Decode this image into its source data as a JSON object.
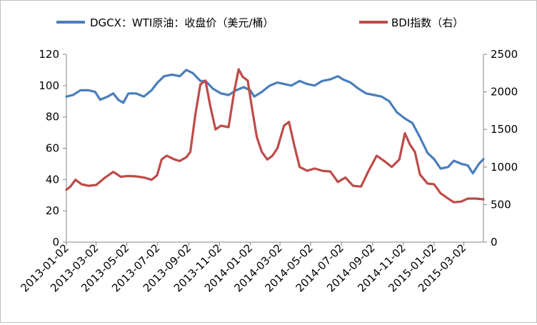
{
  "chart_data": {
    "type": "line",
    "title": "",
    "legend_placement": "top",
    "grid": false,
    "x_tick_labels": [
      "2013-01-02",
      "2013-03-02",
      "2013-05-02",
      "2013-07-02",
      "2013-09-02",
      "2013-11-02",
      "2014-01-02",
      "2014-03-02",
      "2014-05-02",
      "2014-07-02",
      "2014-09-02",
      "2014-11-02",
      "2015-01-02",
      "2015-03-02"
    ],
    "x_range": [
      "2013-01-02",
      "2015-04-10"
    ],
    "y_left": {
      "ticks": [
        "0",
        "20",
        "40",
        "60",
        "80",
        "100",
        "120"
      ],
      "lim": [
        0,
        120
      ]
    },
    "y_right": {
      "ticks": [
        "0",
        "500",
        "1000",
        "1500",
        "2000",
        "2500"
      ],
      "lim": [
        0,
        2500
      ]
    },
    "series": [
      {
        "name": "DGCX：WTI原油：收盘价（美元/桶）",
        "axis": "left",
        "color": "#4a7ebb",
        "points": [
          [
            "2013-01-02",
            93
          ],
          [
            "2013-01-15",
            94
          ],
          [
            "2013-01-30",
            97
          ],
          [
            "2013-02-15",
            97
          ],
          [
            "2013-02-28",
            96
          ],
          [
            "2013-03-10",
            91
          ],
          [
            "2013-03-25",
            93
          ],
          [
            "2013-04-05",
            95
          ],
          [
            "2013-04-15",
            91
          ],
          [
            "2013-04-25",
            89
          ],
          [
            "2013-05-05",
            95
          ],
          [
            "2013-05-20",
            95
          ],
          [
            "2013-06-05",
            93
          ],
          [
            "2013-06-20",
            97
          ],
          [
            "2013-07-02",
            102
          ],
          [
            "2013-07-15",
            106
          ],
          [
            "2013-07-31",
            107
          ],
          [
            "2013-08-15",
            106
          ],
          [
            "2013-08-28",
            110
          ],
          [
            "2013-09-10",
            108
          ],
          [
            "2013-09-25",
            103
          ],
          [
            "2013-10-05",
            103
          ],
          [
            "2013-10-20",
            98
          ],
          [
            "2013-11-05",
            95
          ],
          [
            "2013-11-20",
            94
          ],
          [
            "2013-12-05",
            97
          ],
          [
            "2013-12-20",
            99
          ],
          [
            "2014-01-02",
            97
          ],
          [
            "2014-01-10",
            93
          ],
          [
            "2014-01-25",
            96
          ],
          [
            "2014-02-10",
            100
          ],
          [
            "2014-02-25",
            102
          ],
          [
            "2014-03-10",
            101
          ],
          [
            "2014-03-25",
            100
          ],
          [
            "2014-04-10",
            103
          ],
          [
            "2014-04-25",
            101
          ],
          [
            "2014-05-10",
            100
          ],
          [
            "2014-05-25",
            103
          ],
          [
            "2014-06-10",
            104
          ],
          [
            "2014-06-25",
            106
          ],
          [
            "2014-07-05",
            104
          ],
          [
            "2014-07-20",
            102
          ],
          [
            "2014-08-05",
            98
          ],
          [
            "2014-08-20",
            95
          ],
          [
            "2014-09-05",
            94
          ],
          [
            "2014-09-20",
            93
          ],
          [
            "2014-10-05",
            90
          ],
          [
            "2014-10-20",
            83
          ],
          [
            "2014-11-05",
            79
          ],
          [
            "2014-11-20",
            76
          ],
          [
            "2014-12-05",
            67
          ],
          [
            "2014-12-20",
            57
          ],
          [
            "2015-01-02",
            53
          ],
          [
            "2015-01-15",
            47
          ],
          [
            "2015-01-30",
            48
          ],
          [
            "2015-02-10",
            52
          ],
          [
            "2015-02-25",
            50
          ],
          [
            "2015-03-10",
            49
          ],
          [
            "2015-03-20",
            44
          ],
          [
            "2015-04-01",
            50
          ],
          [
            "2015-04-10",
            53
          ]
        ]
      },
      {
        "name": "BDI指数（右）",
        "axis": "right",
        "color": "#be4b48",
        "points": [
          [
            "2013-01-02",
            698
          ],
          [
            "2013-01-10",
            740
          ],
          [
            "2013-01-20",
            830
          ],
          [
            "2013-02-01",
            770
          ],
          [
            "2013-02-15",
            750
          ],
          [
            "2013-03-02",
            760
          ],
          [
            "2013-03-20",
            860
          ],
          [
            "2013-04-05",
            935
          ],
          [
            "2013-04-20",
            870
          ],
          [
            "2013-05-05",
            880
          ],
          [
            "2013-05-20",
            875
          ],
          [
            "2013-06-05",
            860
          ],
          [
            "2013-06-20",
            830
          ],
          [
            "2013-07-01",
            890
          ],
          [
            "2013-07-10",
            1100
          ],
          [
            "2013-07-20",
            1150
          ],
          [
            "2013-08-05",
            1100
          ],
          [
            "2013-08-15",
            1080
          ],
          [
            "2013-08-28",
            1130
          ],
          [
            "2013-09-05",
            1200
          ],
          [
            "2013-09-15",
            1700
          ],
          [
            "2013-09-25",
            2100
          ],
          [
            "2013-10-05",
            2150
          ],
          [
            "2013-10-15",
            1800
          ],
          [
            "2013-10-25",
            1500
          ],
          [
            "2013-11-05",
            1550
          ],
          [
            "2013-11-20",
            1530
          ],
          [
            "2013-12-01",
            2000
          ],
          [
            "2013-12-10",
            2300
          ],
          [
            "2013-12-18",
            2200
          ],
          [
            "2013-12-28",
            2150
          ],
          [
            "2014-01-05",
            1800
          ],
          [
            "2014-01-15",
            1400
          ],
          [
            "2014-01-25",
            1200
          ],
          [
            "2014-02-05",
            1100
          ],
          [
            "2014-02-15",
            1150
          ],
          [
            "2014-02-25",
            1250
          ],
          [
            "2014-03-10",
            1550
          ],
          [
            "2014-03-20",
            1600
          ],
          [
            "2014-03-30",
            1300
          ],
          [
            "2014-04-10",
            1000
          ],
          [
            "2014-04-25",
            950
          ],
          [
            "2014-05-10",
            980
          ],
          [
            "2014-05-25",
            950
          ],
          [
            "2014-06-10",
            940
          ],
          [
            "2014-06-25",
            800
          ],
          [
            "2014-07-10",
            860
          ],
          [
            "2014-07-25",
            750
          ],
          [
            "2014-08-10",
            740
          ],
          [
            "2014-08-25",
            950
          ],
          [
            "2014-09-10",
            1150
          ],
          [
            "2014-09-25",
            1080
          ],
          [
            "2014-10-10",
            1000
          ],
          [
            "2014-10-25",
            1100
          ],
          [
            "2014-11-05",
            1450
          ],
          [
            "2014-11-15",
            1300
          ],
          [
            "2014-11-25",
            1200
          ],
          [
            "2014-12-05",
            900
          ],
          [
            "2014-12-20",
            780
          ],
          [
            "2015-01-02",
            770
          ],
          [
            "2015-01-15",
            650
          ],
          [
            "2015-01-30",
            580
          ],
          [
            "2015-02-10",
            530
          ],
          [
            "2015-02-25",
            540
          ],
          [
            "2015-03-10",
            580
          ],
          [
            "2015-03-25",
            580
          ],
          [
            "2015-04-10",
            570
          ]
        ]
      }
    ]
  }
}
